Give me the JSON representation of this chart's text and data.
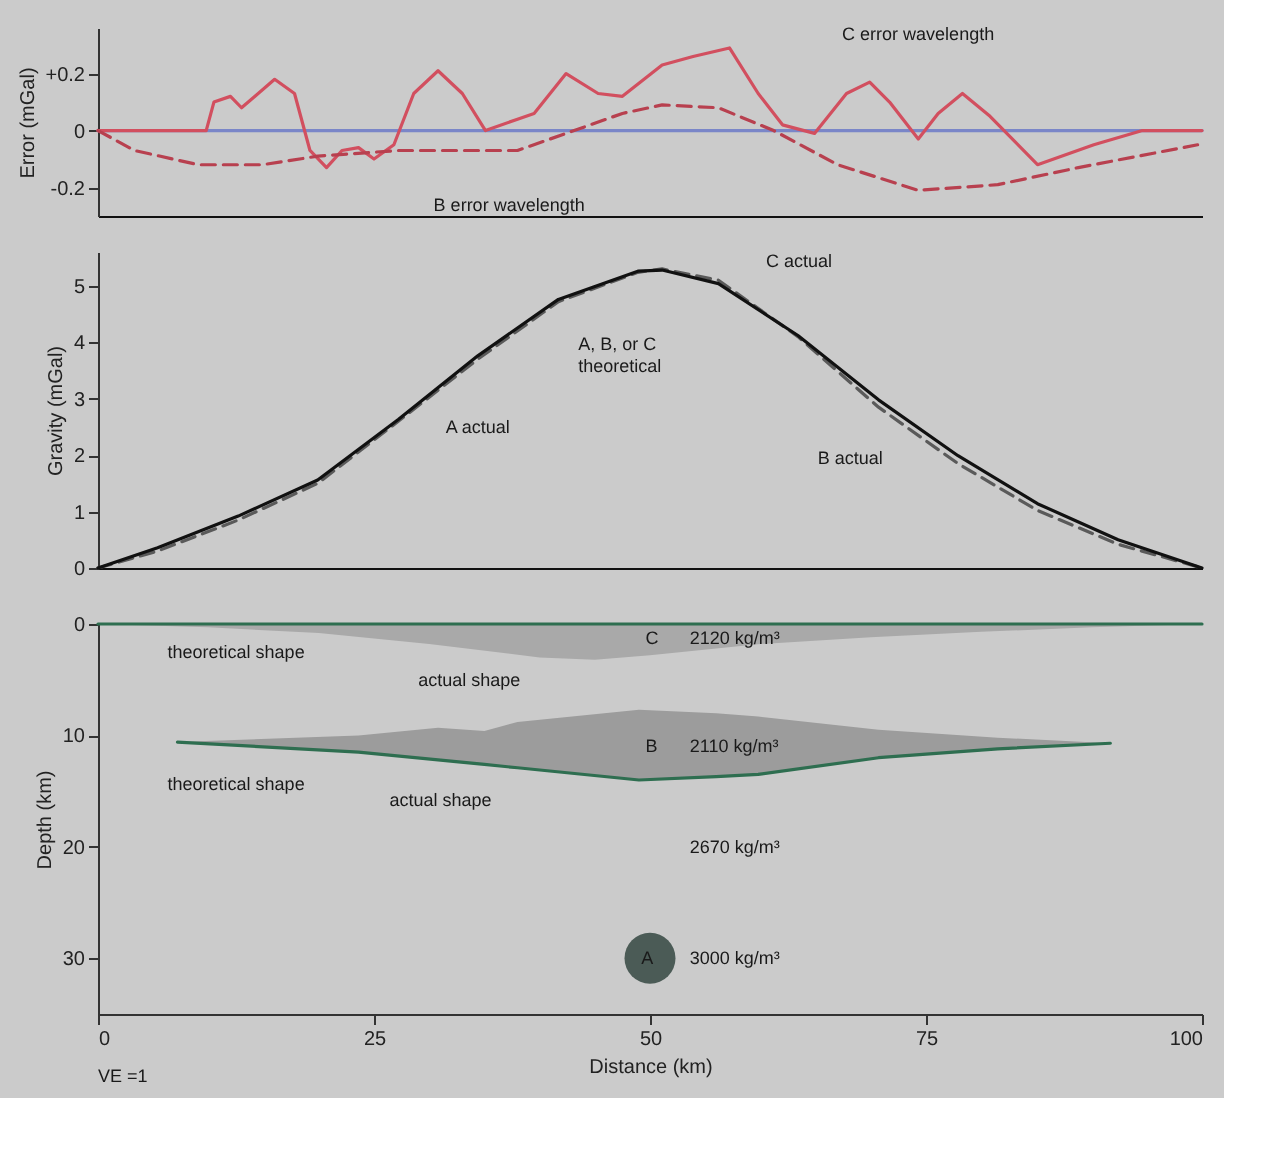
{
  "chart_data": [
    {
      "type": "line",
      "ylabel": "Error (mGal)",
      "xlim": [
        0,
        100
      ],
      "ylim": [
        -0.3,
        0.36
      ],
      "yticks": [
        -0.2,
        0,
        {
          "value": 0.2,
          "label": "+0.2"
        }
      ],
      "tick_labels": "y",
      "grid": false,
      "series": [
        {
          "color": "#7a86c8",
          "x": [
            0,
            100
          ],
          "values": [
            0,
            0
          ]
        },
        {
          "color": "#d24f5f",
          "line_style": "solid",
          "x": [
            0,
            9.8,
            10.5,
            12,
            13,
            16,
            17.8,
            19.2,
            20.7,
            22.1,
            23.6,
            25,
            26.8,
            28.6,
            30.8,
            33,
            35.1,
            38,
            39.5,
            42.4,
            45.3,
            47.5,
            51.1,
            53.9,
            57.2,
            59.8,
            62,
            64.9,
            67.8,
            69.9,
            71.7,
            74.3,
            76.1,
            78.3,
            80.8,
            85.1,
            90.2,
            94.6,
            100
          ],
          "values": [
            0,
            0,
            0.1,
            0.12,
            0.08,
            0.18,
            0.13,
            -0.07,
            -0.13,
            -0.07,
            -0.06,
            -0.1,
            -0.05,
            0.13,
            0.21,
            0.13,
            0,
            0.04,
            0.06,
            0.2,
            0.13,
            0.12,
            0.23,
            0.26,
            0.29,
            0.13,
            0.02,
            -0.01,
            0.13,
            0.17,
            0.1,
            -0.03,
            0.06,
            0.13,
            0.05,
            -0.12,
            -0.05,
            0,
            0
          ]
        },
        {
          "color": "#b8404f",
          "line_style": "dashed",
          "x": [
            0,
            3.3,
            9.1,
            14.9,
            19.9,
            27.2,
            38,
            42.4,
            47.5,
            51.1,
            56.2,
            61.2,
            67,
            74.3,
            81.5,
            88.8,
            99.6
          ],
          "values": [
            0,
            -0.07,
            -0.12,
            -0.12,
            -0.09,
            -0.07,
            -0.07,
            -0.01,
            0.06,
            0.09,
            0.08,
            0,
            -0.12,
            -0.21,
            -0.19,
            -0.13,
            -0.05
          ]
        }
      ],
      "annotations": [
        "C error wavelength",
        "B error wavelength"
      ]
    },
    {
      "type": "line",
      "ylabel": "Gravity (mGal)",
      "xlim": [
        0,
        100
      ],
      "ylim": [
        0,
        5.6
      ],
      "yticks": [
        0,
        1,
        2,
        3,
        4,
        5
      ],
      "tick_labels": "y",
      "grid": false,
      "series": [
        {
          "color": "#5a5a5a",
          "line_style": "dashed",
          "x": [
            0,
            5.4,
            12.7,
            19.9,
            27.2,
            34.4,
            41.7,
            48.9,
            51.1,
            56.2,
            63.4,
            70.7,
            77.9,
            85.1,
            92.4,
            100
          ],
          "values": [
            0,
            0.3,
            0.85,
            1.5,
            2.6,
            3.7,
            4.72,
            5.24,
            5.3,
            5.1,
            4.1,
            2.85,
            1.85,
            1.02,
            0.42,
            0
          ]
        },
        {
          "color": "#111111",
          "line_style": "solid",
          "x": [
            0,
            5.4,
            12.7,
            19.9,
            27.2,
            34.4,
            41.7,
            48.9,
            51.1,
            56.2,
            63.4,
            70.7,
            77.9,
            85.1,
            92.4,
            100
          ],
          "values": [
            0,
            0.36,
            0.92,
            1.56,
            2.63,
            3.76,
            4.76,
            5.26,
            5.28,
            5.04,
            4.12,
            2.98,
            1.99,
            1.14,
            0.5,
            0
          ]
        }
      ],
      "annotations": [
        "C actual",
        "A, B, or C\ntheoretical",
        "A actual",
        "B actual"
      ]
    },
    {
      "type": "area",
      "ylabel": "Depth (km)",
      "xlabel": "Distance (km)",
      "xlim": [
        0,
        100
      ],
      "ylim": [
        35,
        0
      ],
      "yticks": [
        0,
        10,
        20,
        30
      ],
      "xticks": [
        0,
        25,
        50,
        75,
        100
      ],
      "grid": false,
      "series": [
        {
          "color": "#a9a9a9",
          "x": [
            0,
            10,
            20,
            30,
            40,
            45,
            50,
            60,
            70,
            80,
            90,
            100
          ],
          "values": [
            0,
            0.3,
            0.8,
            1.8,
            3.0,
            3.2,
            2.8,
            1.8,
            1.2,
            0.7,
            0.3,
            0
          ]
        },
        {
          "type": "line",
          "color": "#2e6e50",
          "line_style": "solid",
          "x": [
            0,
            100
          ],
          "values": [
            0,
            0
          ]
        },
        {
          "type": "line",
          "color": "#2e6e50",
          "line_style": "solid",
          "x": [
            7.2,
            23.6,
            30.8,
            35,
            38,
            49,
            56,
            59.8,
            70.7,
            81.5,
            91.7
          ],
          "values": [
            10.6,
            11.5,
            12.2,
            12.6,
            12.9,
            14,
            13.7,
            13.5,
            12,
            11.2,
            10.7
          ],
          "lower": [
            10.6,
            10,
            9.3,
            9.6,
            8.8,
            7.7,
            8,
            8.3,
            9.5,
            10.2,
            10.7
          ],
          "upper": [
            10.6,
            11.5,
            12.2,
            12.6,
            12.9,
            14,
            13.7,
            13.5,
            12,
            11.2,
            10.7
          ]
        },
        {
          "type": "scatter",
          "marker": "circle",
          "color": "#4b5b56",
          "x": [
            50
          ],
          "values": [
            30
          ]
        }
      ],
      "annotations": [
        "theoretical shape",
        "actual shape",
        "C",
        "2120 kg/m³",
        "theoretical shape",
        "actual shape",
        "B",
        "2110 kg/m³",
        "2670 kg/m³",
        "A",
        "3000 kg/m³",
        "VE =1"
      ]
    }
  ]
}
